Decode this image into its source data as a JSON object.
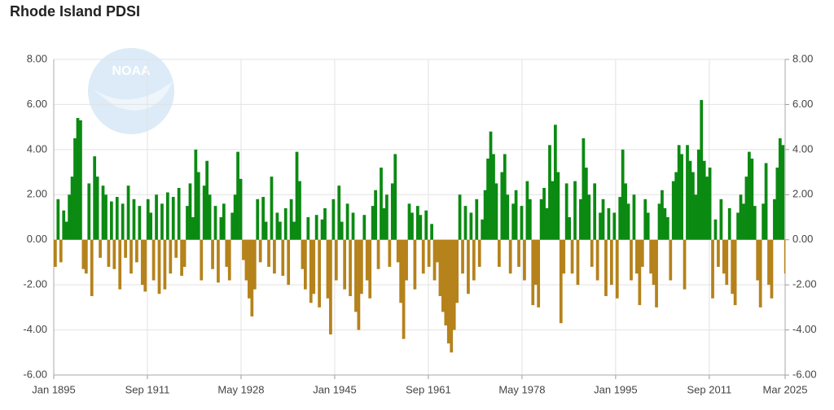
{
  "chart_data": {
    "type": "bar",
    "title": "Rhode Island PDSI",
    "watermark": "NOAA",
    "color_positive": "#0b8a12",
    "color_negative": "#b5821b",
    "grid": true,
    "xlim": [
      1895,
      2025.167
    ],
    "xticks": [
      {
        "value": 1895,
        "label": "Jan 1895"
      },
      {
        "value": 1911.667,
        "label": "Sep 1911"
      },
      {
        "value": 1928.333,
        "label": "May 1928"
      },
      {
        "value": 1945,
        "label": "Jan 1945"
      },
      {
        "value": 1961.667,
        "label": "Sep 1961"
      },
      {
        "value": 1978.333,
        "label": "May 1978"
      },
      {
        "value": 1995,
        "label": "Jan 1995"
      },
      {
        "value": 2011.667,
        "label": "Sep 2011"
      },
      {
        "value": 2025.167,
        "label": "Mar 2025"
      }
    ],
    "ylim": [
      -6,
      8
    ],
    "yticks": [
      {
        "value": -6,
        "label": "-6.00"
      },
      {
        "value": -4,
        "label": "-4.00"
      },
      {
        "value": -2,
        "label": "-2.00"
      },
      {
        "value": 0,
        "label": "0.00"
      },
      {
        "value": 2,
        "label": "2.00"
      },
      {
        "value": 4,
        "label": "4.00"
      },
      {
        "value": 6,
        "label": "6.00"
      },
      {
        "value": 8,
        "label": "8.00"
      }
    ],
    "y2lim": [
      -6,
      8
    ],
    "y2ticks": [
      {
        "value": -6,
        "label": "-6.00"
      },
      {
        "value": -4,
        "label": "-4.00"
      },
      {
        "value": -2,
        "label": "-2.00"
      },
      {
        "value": 0,
        "label": "0.00"
      },
      {
        "value": 2,
        "label": "2.00"
      },
      {
        "value": 4,
        "label": "4.00"
      },
      {
        "value": 6,
        "label": "6.00"
      },
      {
        "value": 8,
        "label": "8.00"
      }
    ],
    "x": [
      1895,
      1895.5,
      1896,
      1896.5,
      1897,
      1897.5,
      1898,
      1898.5,
      1899,
      1899.5,
      1900,
      1900.5,
      1901,
      1901.5,
      1902,
      1902.5,
      1903,
      1903.5,
      1904,
      1904.5,
      1905,
      1905.5,
      1906,
      1906.5,
      1907,
      1907.5,
      1908,
      1908.5,
      1909,
      1909.5,
      1910,
      1910.5,
      1911,
      1911.5,
      1912,
      1912.5,
      1913,
      1913.5,
      1914,
      1914.5,
      1915,
      1915.5,
      1916,
      1916.5,
      1917,
      1917.5,
      1918,
      1918.5,
      1919,
      1919.5,
      1920,
      1920.5,
      1921,
      1921.5,
      1922,
      1922.5,
      1923,
      1923.5,
      1924,
      1924.5,
      1925,
      1925.5,
      1926,
      1926.5,
      1927,
      1927.5,
      1928,
      1928.5,
      1929,
      1929.5,
      1930,
      1930.5,
      1931,
      1931.5,
      1932,
      1932.5,
      1933,
      1933.5,
      1934,
      1934.5,
      1935,
      1935.5,
      1936,
      1936.5,
      1937,
      1937.5,
      1938,
      1938.5,
      1939,
      1939.5,
      1940,
      1940.5,
      1941,
      1941.5,
      1942,
      1942.5,
      1943,
      1943.5,
      1944,
      1944.5,
      1945,
      1945.5,
      1946,
      1946.5,
      1947,
      1947.5,
      1948,
      1948.5,
      1949,
      1949.5,
      1950,
      1950.5,
      1951,
      1951.5,
      1952,
      1952.5,
      1953,
      1953.5,
      1954,
      1954.5,
      1955,
      1955.5,
      1956,
      1956.5,
      1957,
      1957.5,
      1958,
      1958.5,
      1959,
      1959.5,
      1960,
      1960.5,
      1961,
      1961.5,
      1962,
      1962.5,
      1963,
      1963.5,
      1964,
      1964.5,
      1965,
      1965.5,
      1966,
      1966.5,
      1967,
      1967.5,
      1968,
      1968.5,
      1969,
      1969.5,
      1970,
      1970.5,
      1971,
      1971.5,
      1972,
      1972.5,
      1973,
      1973.5,
      1974,
      1974.5,
      1975,
      1975.5,
      1976,
      1976.5,
      1977,
      1977.5,
      1978,
      1978.5,
      1979,
      1979.5,
      1980,
      1980.5,
      1981,
      1981.5,
      1982,
      1982.5,
      1983,
      1983.5,
      1984,
      1984.5,
      1985,
      1985.5,
      1986,
      1986.5,
      1987,
      1987.5,
      1988,
      1988.5,
      1989,
      1989.5,
      1990,
      1990.5,
      1991,
      1991.5,
      1992,
      1992.5,
      1993,
      1993.5,
      1994,
      1994.5,
      1995,
      1995.5,
      1996,
      1996.5,
      1997,
      1997.5,
      1998,
      1998.5,
      1999,
      1999.5,
      2000,
      2000.5,
      2001,
      2001.5,
      2002,
      2002.5,
      2003,
      2003.5,
      2004,
      2004.5,
      2005,
      2005.5,
      2006,
      2006.5,
      2007,
      2007.5,
      2008,
      2008.5,
      2009,
      2009.5,
      2010,
      2010.5,
      2011,
      2011.5,
      2012,
      2012.5,
      2013,
      2013.5,
      2014,
      2014.5,
      2015,
      2015.5,
      2016,
      2016.5,
      2017,
      2017.5,
      2018,
      2018.5,
      2019,
      2019.5,
      2020,
      2020.5,
      2021,
      2021.5,
      2022,
      2022.5,
      2023,
      2023.5,
      2024,
      2024.5,
      2025
    ],
    "values": [
      -1.2,
      1.8,
      -1.0,
      1.3,
      0.8,
      2.0,
      2.8,
      4.5,
      5.4,
      5.3,
      -1.3,
      -1.5,
      2.5,
      -2.5,
      3.7,
      2.8,
      -0.8,
      2.4,
      2.0,
      -1.2,
      1.7,
      -1.3,
      1.9,
      -2.2,
      1.6,
      -0.8,
      2.4,
      -1.5,
      1.8,
      -1.0,
      1.5,
      -2.0,
      -2.3,
      1.8,
      1.2,
      -1.8,
      2.0,
      -2.4,
      1.6,
      -2.2,
      2.1,
      -1.5,
      1.9,
      -0.8,
      2.3,
      -1.6,
      -1.2,
      1.5,
      2.5,
      1.0,
      4.0,
      3.0,
      -1.8,
      2.4,
      3.5,
      2.0,
      -1.3,
      1.5,
      -1.9,
      1.0,
      1.6,
      -1.2,
      -1.8,
      1.2,
      2.0,
      3.9,
      2.7,
      -0.9,
      -1.8,
      -2.6,
      -3.4,
      -2.2,
      1.8,
      -1.0,
      1.9,
      0.8,
      -1.2,
      2.8,
      -1.5,
      1.2,
      0.8,
      -1.6,
      1.4,
      -2.0,
      1.8,
      0.8,
      3.9,
      2.6,
      -1.3,
      -2.2,
      1.0,
      -2.8,
      -2.4,
      1.1,
      -3.0,
      0.9,
      1.4,
      -2.6,
      -4.2,
      1.8,
      -1.8,
      2.4,
      0.8,
      -2.2,
      1.6,
      -2.5,
      1.2,
      -3.2,
      -4.0,
      -2.4,
      1.1,
      -1.8,
      -2.6,
      1.5,
      2.2,
      -1.3,
      3.2,
      1.4,
      2.0,
      -1.2,
      2.5,
      3.8,
      -1.0,
      -2.8,
      -4.4,
      -1.8,
      1.6,
      1.2,
      -2.2,
      1.5,
      1.1,
      -1.5,
      1.3,
      -1.2,
      0.7,
      -1.8,
      -1.0,
      -2.5,
      -3.2,
      -3.8,
      -4.6,
      -5.0,
      -4.0,
      -2.8,
      2.0,
      -1.5,
      1.5,
      -2.4,
      1.2,
      -1.8,
      1.8,
      -1.2,
      0.9,
      2.2,
      3.6,
      4.8,
      3.8,
      2.5,
      -1.2,
      3.0,
      3.8,
      2.0,
      -1.5,
      1.6,
      2.2,
      -1.2,
      1.5,
      -1.8,
      2.6,
      1.8,
      -2.9,
      -2.0,
      -3.0,
      1.8,
      2.3,
      1.4,
      4.2,
      2.6,
      5.1,
      3.0,
      -3.7,
      -1.5,
      2.5,
      1.0,
      -1.5,
      2.6,
      -2.0,
      1.8,
      4.5,
      3.2,
      2.0,
      -1.2,
      2.5,
      -1.8,
      1.2,
      1.8,
      -2.5,
      1.4,
      -2.0,
      1.2,
      -2.6,
      1.9,
      4.0,
      2.5,
      1.6,
      -1.8,
      2.0,
      -1.5,
      -2.9,
      -1.2,
      1.8,
      1.2,
      -1.5,
      -2.0,
      -3.0,
      1.6,
      2.2,
      1.4,
      1.0,
      -1.8,
      2.6,
      3.0,
      4.2,
      3.8,
      -2.2,
      4.2,
      3.5,
      3.0,
      2.0,
      4.0,
      6.2,
      3.5,
      2.8,
      3.2,
      -2.6,
      0.9,
      -1.2,
      1.8,
      -1.5,
      -2.0,
      1.4,
      -2.4,
      -2.9,
      1.2,
      2.0,
      1.6,
      2.8,
      3.9,
      3.6,
      1.5,
      -1.8,
      -3.0,
      1.6,
      3.4,
      -2.0,
      -2.6,
      1.8,
      3.2,
      4.5,
      4.2,
      -1.5
    ]
  }
}
